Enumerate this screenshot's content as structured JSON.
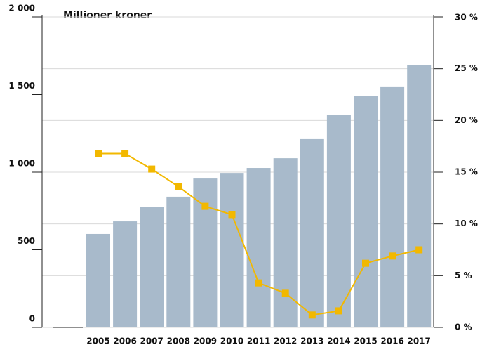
{
  "chart_data": {
    "type": "bar_line",
    "title": "Millioner kroner",
    "categories": [
      "2005",
      "2006",
      "2007",
      "2008",
      "2009",
      "2010",
      "2011",
      "2012",
      "2013",
      "2014",
      "2015",
      "2016",
      "2017"
    ],
    "series": [
      {
        "type": "bar",
        "color": "#a8bacb",
        "values": [
          602,
          683,
          778,
          842,
          959,
          995,
          1027,
          1090,
          1213,
          1367,
          1493,
          1548,
          1692
        ]
      },
      {
        "type": "line",
        "axis": "y2",
        "color": "#f2b800",
        "values": [
          16.8,
          16.8,
          15.3,
          13.6,
          11.7,
          10.9,
          4.3,
          3.3,
          1.2,
          1.6,
          6.2,
          6.9,
          7.5
        ]
      }
    ],
    "ylim": [
      0,
      2000
    ],
    "yticks": [
      0,
      500,
      {
        "value": 1000,
        "label": "1 000"
      },
      {
        "value": 1500,
        "label": "1 500"
      },
      {
        "value": 2000,
        "label": "2 000"
      }
    ],
    "y2lim": [
      0,
      30
    ],
    "y2ticks": [
      {
        "value": 0,
        "label": "0 %"
      },
      {
        "value": 5,
        "label": "5 %"
      },
      {
        "value": 10,
        "label": "10 %"
      },
      {
        "value": 15,
        "label": "15 %"
      },
      {
        "value": 20,
        "label": "20 %"
      },
      {
        "value": 25,
        "label": "25 %"
      },
      {
        "value": 30,
        "label": "30 %"
      }
    ],
    "grid": true
  }
}
